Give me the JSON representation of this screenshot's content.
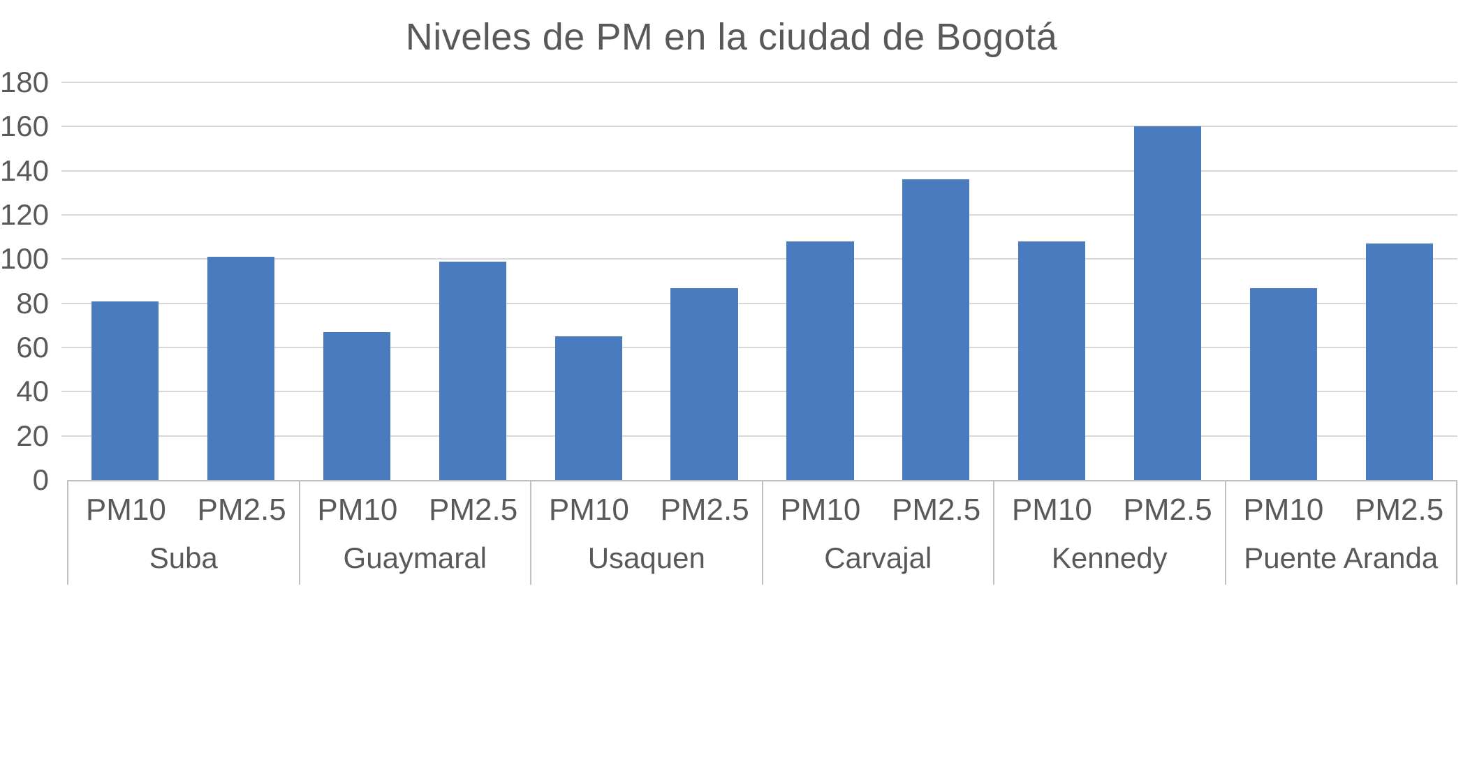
{
  "chart_data": {
    "type": "bar",
    "title": "Niveles de PM en la ciudad de Bogotá",
    "groups": [
      "Suba",
      "Guaymaral",
      "Usaquen",
      "Carvajal",
      "Kennedy",
      "Puente Aranda"
    ],
    "sub_categories": [
      "PM10",
      "PM2.5"
    ],
    "values": [
      [
        81,
        101
      ],
      [
        67,
        99
      ],
      [
        65,
        87
      ],
      [
        108,
        136
      ],
      [
        108,
        160
      ],
      [
        87,
        107
      ]
    ],
    "series": [
      {
        "name": "PM10",
        "values": [
          81,
          67,
          65,
          108,
          108,
          87
        ]
      },
      {
        "name": "PM2.5",
        "values": [
          101,
          99,
          87,
          136,
          160,
          107
        ]
      }
    ],
    "xlabel": "",
    "ylabel": "",
    "ylim": [
      0,
      180
    ],
    "yticks": [
      0,
      20,
      40,
      60,
      80,
      100,
      120,
      140,
      160,
      180
    ],
    "grid": true,
    "legend_position": "none",
    "bar_color": "#4A7BBE",
    "gridline_color": "#D9D9D9",
    "axis_line_color": "#BFBFBF",
    "text_color": "#595959"
  }
}
